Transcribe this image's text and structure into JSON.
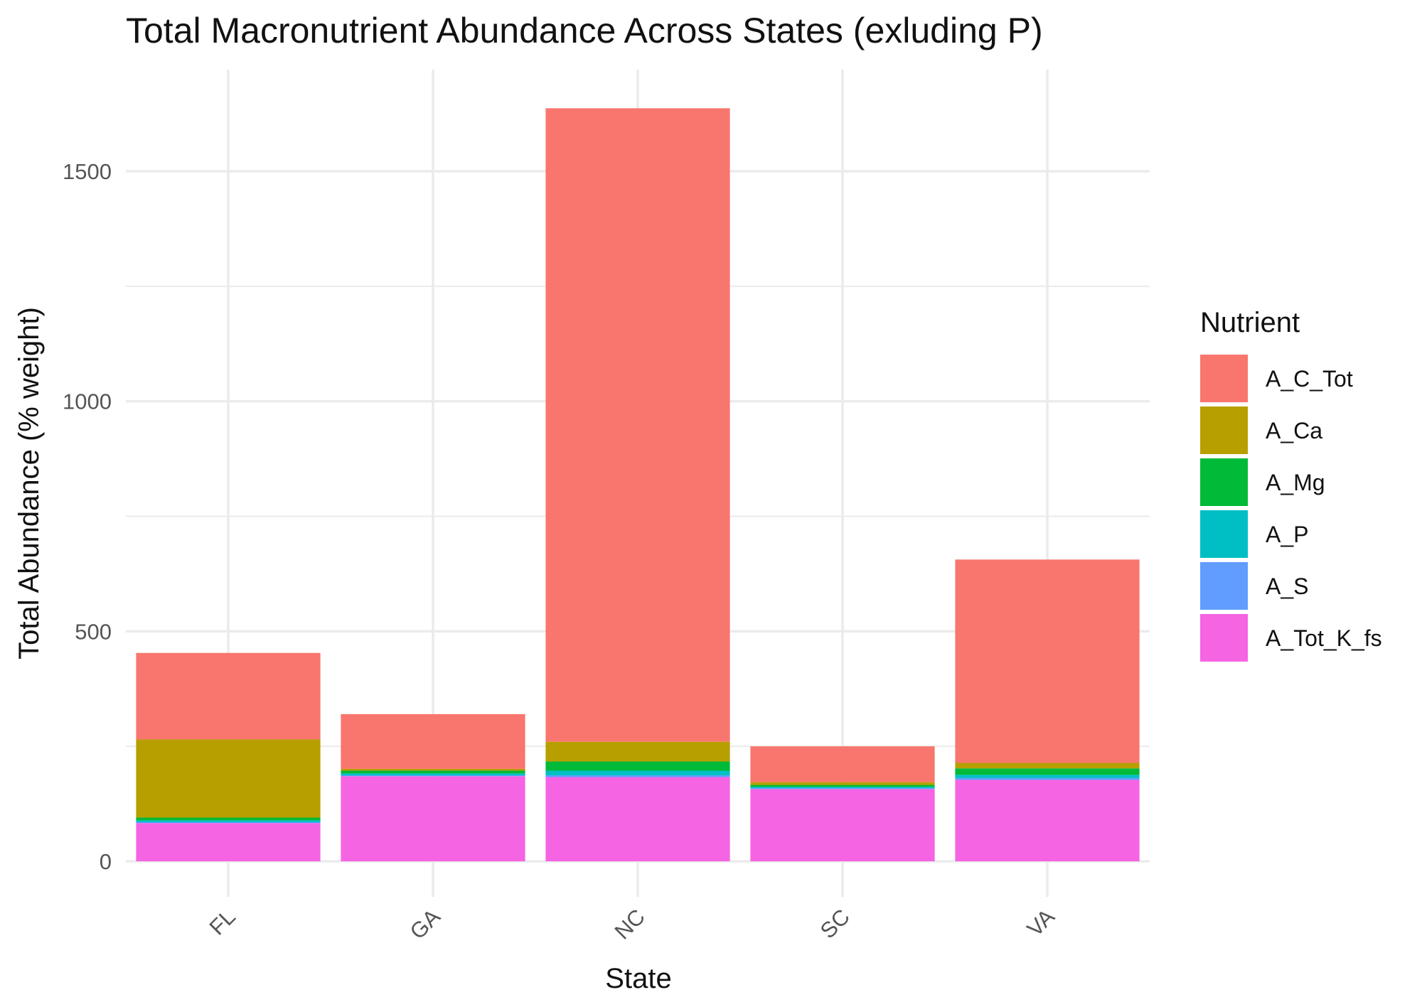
{
  "chart_data": {
    "type": "bar",
    "stacked": true,
    "title": "Total Macronutrient Abundance Across States (exluding P)",
    "xlabel": "State",
    "ylabel": "Total Abundance (% weight)",
    "ylim": [
      -75,
      1710
    ],
    "yticks": [
      0,
      500,
      1000,
      1500
    ],
    "grid": true,
    "legend_title": "Nutrient",
    "legend_position": "right",
    "categories": [
      "FL",
      "GA",
      "NC",
      "SC",
      "VA"
    ],
    "series": [
      {
        "name": "A_Tot_K_fs",
        "color": "#F564E3",
        "values": [
          83,
          185,
          183,
          157,
          177
        ]
      },
      {
        "name": "A_S",
        "color": "#619CFF",
        "values": [
          2,
          2,
          4,
          2,
          4
        ]
      },
      {
        "name": "A_P",
        "color": "#00BFC4",
        "values": [
          4,
          4,
          10,
          3,
          7
        ]
      },
      {
        "name": "A_Mg",
        "color": "#00BA38",
        "values": [
          6,
          6,
          20,
          4,
          14
        ]
      },
      {
        "name": "A_Ca",
        "color": "#B79F00",
        "values": [
          170,
          4,
          43,
          6,
          12
        ]
      },
      {
        "name": "A_C_Tot",
        "color": "#F8766D",
        "values": [
          188,
          119,
          1377,
          78,
          442
        ]
      }
    ],
    "legend_order": [
      "A_C_Tot",
      "A_Ca",
      "A_Mg",
      "A_P",
      "A_S",
      "A_Tot_K_fs"
    ]
  }
}
